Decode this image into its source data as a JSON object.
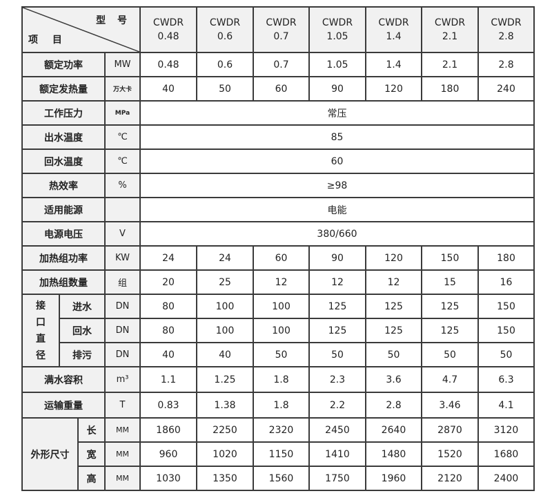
{
  "header": {
    "model_label": "型 号",
    "item_label": "项 目",
    "models": [
      "CWDR\n0.48",
      "CWDR\n0.6",
      "CWDR\n0.7",
      "CWDR\n1.05",
      "CWDR\n1.4",
      "CWDR\n2.1",
      "CWDR\n2.8"
    ]
  },
  "rows": [
    {
      "label": "额定功率",
      "unit": "MW",
      "values": [
        "0.48",
        "0.6",
        "0.7",
        "1.05",
        "1.4",
        "2.1",
        "2.8"
      ]
    },
    {
      "label": "额定发热量",
      "unit": "万大卡",
      "values": [
        "40",
        "50",
        "60",
        "90",
        "120",
        "180",
        "240"
      ]
    },
    {
      "label": "工作压力",
      "unit": "MPa",
      "span": "常压"
    },
    {
      "label": "出水温度",
      "unit": "℃",
      "span": "85"
    },
    {
      "label": "回水温度",
      "unit": "℃",
      "span": "60"
    },
    {
      "label": "热效率",
      "unit": "%",
      "span": "≥98"
    },
    {
      "label": "适用能源",
      "unit": "",
      "span": "电能"
    },
    {
      "label": "电源电压",
      "unit": "V",
      "span": "380/660"
    },
    {
      "label": "加热组功率",
      "unit": "KW",
      "values": [
        "24",
        "24",
        "60",
        "90",
        "120",
        "150",
        "180"
      ]
    },
    {
      "label": "加热组数量",
      "unit": "组",
      "values": [
        "20",
        "25",
        "12",
        "12",
        "12",
        "15",
        "16"
      ]
    }
  ],
  "interface": {
    "group_label": "接\n口\n直\n径",
    "rows": [
      {
        "label": "进水",
        "unit": "DN",
        "values": [
          "80",
          "100",
          "100",
          "125",
          "125",
          "125",
          "150"
        ]
      },
      {
        "label": "回水",
        "unit": "DN",
        "values": [
          "80",
          "100",
          "100",
          "125",
          "125",
          "125",
          "150"
        ]
      },
      {
        "label": "排污",
        "unit": "DN",
        "values": [
          "40",
          "40",
          "50",
          "50",
          "50",
          "50",
          "50"
        ]
      }
    ]
  },
  "rows2": [
    {
      "label": "满水容积",
      "unit": "m³",
      "values": [
        "1.1",
        "1.25",
        "1.8",
        "2.3",
        "3.6",
        "4.7",
        "6.3"
      ]
    },
    {
      "label": "运输重量",
      "unit": "T",
      "values": [
        "0.83",
        "1.38",
        "1.8",
        "2.2",
        "2.8",
        "3.46",
        "4.1"
      ]
    }
  ],
  "dimensions": {
    "group_label": "外形尺寸",
    "rows": [
      {
        "label": "长",
        "unit": "MM",
        "values": [
          "1860",
          "2250",
          "2320",
          "2450",
          "2640",
          "2870",
          "3120"
        ]
      },
      {
        "label": "宽",
        "unit": "MM",
        "values": [
          "960",
          "1020",
          "1150",
          "1410",
          "1480",
          "1520",
          "1680"
        ]
      },
      {
        "label": "高",
        "unit": "MM",
        "values": [
          "1030",
          "1350",
          "1560",
          "1750",
          "1960",
          "2120",
          "2400"
        ]
      }
    ]
  }
}
